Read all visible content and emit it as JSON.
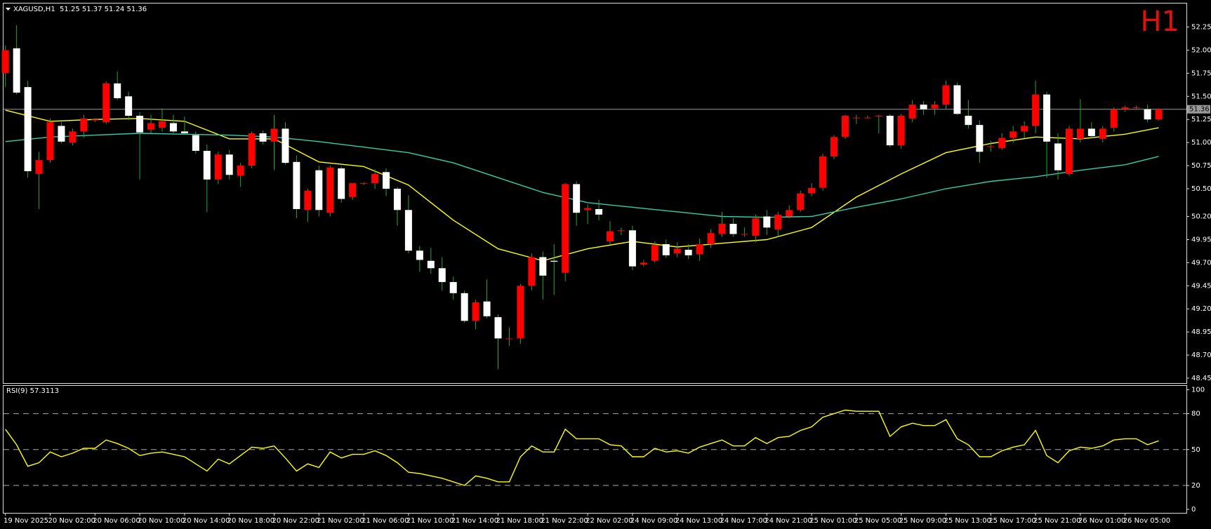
{
  "chart_data": [
    {
      "type": "candlestick",
      "header": "XAGUSD,H1  51.25 51.37 51.24 51.36",
      "timeframe": "H1",
      "up_color": "#ff0000",
      "down_color": "#ffffff",
      "wick_color": "#22aa22",
      "categories": [
        "19 Nov 2025",
        null,
        null,
        null,
        "20 Nov 02:00",
        null,
        null,
        null,
        "20 Nov 06:00",
        null,
        null,
        null,
        "20 Nov 10:00",
        null,
        null,
        null,
        "20 Nov 14:00",
        null,
        null,
        null,
        "20 Nov 18:00",
        null,
        null,
        null,
        "20 Nov 22:00",
        null,
        null,
        null,
        "21 Nov 02:00",
        null,
        null,
        null,
        "21 Nov 06:00",
        null,
        null,
        null,
        "21 Nov 10:00",
        null,
        null,
        null,
        "21 Nov 14:00",
        null,
        null,
        null,
        "21 Nov 18:00",
        null,
        null,
        null,
        "21 Nov 22:00",
        null,
        null,
        null,
        "22 Nov 02:00",
        null,
        null,
        null,
        "24 Nov 09:00",
        null,
        null,
        null,
        "24 Nov 13:00",
        null,
        null,
        null,
        "24 Nov 17:00",
        null,
        null,
        null,
        "24 Nov 21:00",
        null,
        null,
        null,
        "25 Nov 01:00",
        null,
        null,
        null,
        "25 Nov 05:00",
        null,
        null,
        null,
        "25 Nov 09:00",
        null,
        null,
        null,
        "25 Nov 13:00",
        null,
        null,
        null,
        "25 Nov 17:00",
        null,
        null,
        null,
        "25 Nov 21:00",
        null,
        null,
        null,
        "26 Nov 01:00",
        null,
        null,
        null,
        "26 Nov 05:00",
        null,
        null,
        null
      ],
      "ohlc": [
        [
          51.75,
          52.05,
          51.6,
          52.0
        ],
        [
          52.02,
          52.27,
          51.52,
          51.54
        ],
        [
          51.6,
          51.67,
          50.62,
          50.69
        ],
        [
          50.66,
          50.9,
          50.28,
          50.81
        ],
        [
          50.81,
          51.26,
          50.78,
          51.22
        ],
        [
          51.18,
          51.22,
          50.99,
          51.01
        ],
        [
          51.0,
          51.15,
          50.97,
          51.12
        ],
        [
          51.12,
          51.3,
          51.05,
          51.26
        ],
        [
          51.24,
          51.26,
          51.22,
          51.25
        ],
        [
          51.22,
          51.66,
          51.2,
          51.64
        ],
        [
          51.64,
          51.77,
          51.46,
          51.48
        ],
        [
          51.5,
          51.55,
          51.24,
          51.29
        ],
        [
          51.29,
          51.33,
          50.6,
          51.11
        ],
        [
          51.14,
          51.3,
          51.1,
          51.21
        ],
        [
          51.16,
          51.37,
          51.12,
          51.23
        ],
        [
          51.21,
          51.3,
          51.1,
          51.12
        ],
        [
          51.12,
          51.28,
          51.08,
          51.1
        ],
        [
          51.08,
          51.12,
          50.88,
          50.91
        ],
        [
          50.91,
          50.98,
          50.25,
          50.6
        ],
        [
          50.6,
          50.9,
          50.55,
          50.87
        ],
        [
          50.87,
          50.92,
          50.6,
          50.65
        ],
        [
          50.64,
          50.78,
          50.52,
          50.75
        ],
        [
          50.75,
          51.12,
          50.72,
          51.1
        ],
        [
          51.1,
          51.13,
          50.98,
          51.01
        ],
        [
          51.01,
          51.3,
          50.7,
          51.15
        ],
        [
          51.15,
          51.22,
          50.76,
          50.78
        ],
        [
          50.79,
          50.86,
          50.18,
          50.28
        ],
        [
          50.27,
          50.5,
          50.14,
          50.48
        ],
        [
          50.7,
          50.75,
          50.2,
          50.27
        ],
        [
          50.24,
          50.75,
          50.2,
          50.73
        ],
        [
          50.72,
          50.74,
          50.35,
          50.39
        ],
        [
          50.41,
          50.56,
          50.38,
          50.56
        ],
        [
          50.56,
          50.57,
          50.54,
          50.56
        ],
        [
          50.56,
          50.71,
          50.5,
          50.66
        ],
        [
          50.68,
          50.72,
          50.42,
          50.5
        ],
        [
          50.5,
          50.52,
          50.1,
          50.27
        ],
        [
          50.27,
          50.43,
          49.8,
          49.83
        ],
        [
          49.83,
          49.88,
          49.6,
          49.73
        ],
        [
          49.72,
          49.86,
          49.58,
          49.64
        ],
        [
          49.64,
          49.76,
          49.4,
          49.49
        ],
        [
          49.49,
          49.55,
          49.3,
          49.37
        ],
        [
          49.37,
          49.4,
          49.05,
          49.07
        ],
        [
          49.07,
          49.3,
          48.98,
          49.27
        ],
        [
          49.28,
          49.52,
          49.1,
          49.12
        ],
        [
          49.11,
          49.14,
          48.55,
          48.88
        ],
        [
          48.88,
          49.0,
          48.8,
          48.88
        ],
        [
          48.88,
          49.47,
          48.82,
          49.45
        ],
        [
          49.45,
          49.8,
          49.4,
          49.76
        ],
        [
          49.76,
          49.82,
          49.3,
          49.56
        ],
        [
          49.72,
          49.9,
          49.35,
          49.71
        ],
        [
          49.59,
          50.56,
          49.5,
          50.55
        ],
        [
          50.55,
          50.58,
          50.1,
          50.24
        ],
        [
          50.27,
          50.33,
          50.12,
          50.29
        ],
        [
          50.28,
          50.38,
          50.16,
          50.22
        ],
        [
          49.93,
          50.15,
          49.9,
          50.04
        ],
        [
          50.05,
          50.08,
          50.0,
          50.05
        ],
        [
          50.05,
          50.1,
          49.62,
          49.66
        ],
        [
          49.68,
          49.73,
          49.66,
          49.7
        ],
        [
          49.72,
          49.93,
          49.7,
          49.89
        ],
        [
          49.9,
          49.95,
          49.75,
          49.78
        ],
        [
          49.8,
          49.92,
          49.76,
          49.85
        ],
        [
          49.84,
          49.9,
          49.74,
          49.78
        ],
        [
          49.79,
          49.96,
          49.72,
          49.9
        ],
        [
          49.9,
          50.06,
          49.86,
          50.02
        ],
        [
          50.01,
          50.25,
          49.98,
          50.12
        ],
        [
          50.12,
          50.18,
          49.98,
          50.01
        ],
        [
          50.01,
          50.08,
          49.98,
          50.01
        ],
        [
          49.99,
          50.22,
          49.92,
          50.18
        ],
        [
          50.2,
          50.27,
          50.0,
          50.08
        ],
        [
          50.06,
          50.25,
          49.98,
          50.22
        ],
        [
          50.2,
          50.32,
          50.18,
          50.27
        ],
        [
          50.27,
          50.48,
          50.25,
          50.45
        ],
        [
          50.45,
          50.56,
          50.42,
          50.51
        ],
        [
          50.51,
          50.88,
          50.48,
          50.85
        ],
        [
          50.85,
          51.08,
          50.82,
          51.06
        ],
        [
          51.06,
          51.3,
          51.04,
          51.29
        ],
        [
          51.27,
          51.3,
          51.2,
          51.27
        ],
        [
          51.27,
          51.29,
          51.26,
          51.27
        ],
        [
          51.29,
          51.3,
          51.1,
          51.29
        ],
        [
          51.29,
          51.31,
          50.95,
          50.97
        ],
        [
          50.97,
          51.31,
          50.93,
          51.29
        ],
        [
          51.26,
          51.46,
          51.22,
          51.41
        ],
        [
          51.41,
          51.45,
          51.3,
          51.36
        ],
        [
          51.37,
          51.45,
          51.3,
          51.41
        ],
        [
          51.41,
          51.67,
          51.36,
          51.62
        ],
        [
          51.62,
          51.65,
          51.3,
          51.31
        ],
        [
          51.29,
          51.46,
          51.15,
          51.19
        ],
        [
          51.19,
          51.24,
          50.78,
          50.9
        ],
        [
          50.96,
          51.02,
          50.9,
          50.96
        ],
        [
          50.94,
          51.1,
          50.92,
          51.05
        ],
        [
          51.05,
          51.18,
          51.0,
          51.12
        ],
        [
          51.12,
          51.23,
          51.05,
          51.18
        ],
        [
          51.18,
          51.67,
          51.1,
          51.52
        ],
        [
          51.52,
          51.55,
          50.62,
          51.01
        ],
        [
          50.99,
          51.1,
          50.6,
          50.7
        ],
        [
          50.66,
          51.18,
          50.64,
          51.15
        ],
        [
          51.04,
          51.47,
          51.0,
          51.15
        ],
        [
          51.15,
          51.22,
          51.05,
          51.07
        ],
        [
          51.04,
          51.18,
          51.0,
          51.15
        ],
        [
          51.16,
          51.38,
          51.12,
          51.36
        ],
        [
          51.36,
          51.4,
          51.33,
          51.38
        ],
        [
          51.38,
          51.4,
          51.36,
          51.38
        ],
        [
          51.36,
          51.41,
          51.22,
          51.25
        ],
        [
          51.25,
          51.37,
          51.24,
          51.36
        ]
      ],
      "lines": [
        {
          "color": "#ffff00",
          "x": [
            0,
            4,
            8,
            12,
            16,
            20,
            24,
            28,
            32,
            36,
            40,
            44,
            48,
            52,
            56,
            60,
            64,
            68,
            72,
            76,
            80,
            84,
            88,
            92,
            96,
            100,
            103
          ],
          "values": [
            51.35,
            51.23,
            51.25,
            51.26,
            51.23,
            51.04,
            51.04,
            50.79,
            50.74,
            50.54,
            50.16,
            49.85,
            49.72,
            49.85,
            49.93,
            49.87,
            49.91,
            49.95,
            50.08,
            50.41,
            50.66,
            50.89,
            50.99,
            51.06,
            51.04,
            51.09,
            51.16
          ]
        },
        {
          "color": "#2fd0b0",
          "x": [
            0,
            4,
            8,
            12,
            16,
            20,
            24,
            28,
            32,
            36,
            40,
            44,
            48,
            52,
            56,
            60,
            64,
            68,
            72,
            76,
            80,
            84,
            88,
            92,
            96,
            100,
            103
          ],
          "values": [
            51.01,
            51.06,
            51.08,
            51.1,
            51.09,
            51.08,
            51.06,
            51.01,
            50.95,
            50.89,
            50.78,
            50.62,
            50.46,
            50.35,
            50.3,
            50.25,
            50.2,
            50.19,
            50.2,
            50.3,
            50.39,
            50.5,
            50.58,
            50.63,
            50.7,
            50.76,
            50.85
          ]
        }
      ],
      "last_price": 51.36,
      "last_price_color": "#9a9a9a",
      "ylim": [
        48.4,
        52.5
      ],
      "yticks": [
        48.45,
        {
          "value": 48.7,
          "label": "48.70"
        },
        48.95,
        {
          "value": 49.2,
          "label": "49.20"
        },
        49.45,
        {
          "value": 49.7,
          "label": "49.70"
        },
        49.95,
        {
          "value": 50.2,
          "label": "50.20"
        },
        {
          "value": 50.5,
          "label": "50.50"
        },
        50.75,
        {
          "value": 51,
          "label": "51.00"
        },
        51.25,
        {
          "value": 51.5,
          "label": "51.50"
        },
        51.75,
        {
          "value": 52,
          "label": "52.00"
        },
        52.25
      ]
    },
    {
      "type": "line",
      "label": "RSI(9) 57.3113",
      "color": "#ffff00",
      "values": [
        67,
        54,
        36,
        39,
        48,
        44,
        47,
        51,
        51,
        58,
        55,
        51,
        45,
        47,
        48,
        46,
        44,
        38,
        32,
        42,
        38,
        45,
        52,
        51,
        53,
        43,
        32,
        38,
        35,
        48,
        43,
        46,
        46,
        49,
        45,
        39,
        31,
        30,
        28,
        26,
        23,
        20,
        28,
        26,
        23,
        23,
        44,
        53,
        48,
        48,
        67,
        59,
        59,
        59,
        54,
        53,
        44,
        44,
        51,
        48,
        49,
        47,
        52,
        55,
        58,
        53,
        53,
        60,
        55,
        60,
        61,
        66,
        69,
        77,
        80,
        83,
        82,
        82,
        82,
        61,
        69,
        72,
        70,
        70,
        75,
        59,
        54,
        44,
        44,
        49,
        52,
        54,
        66,
        45,
        39,
        49,
        52,
        51,
        53,
        58,
        59,
        59,
        54,
        57.3113
      ],
      "ylim": [
        0,
        100
      ],
      "yticks": [
        0,
        20,
        50,
        80,
        100
      ],
      "levels": [
        20,
        50,
        80
      ]
    }
  ]
}
